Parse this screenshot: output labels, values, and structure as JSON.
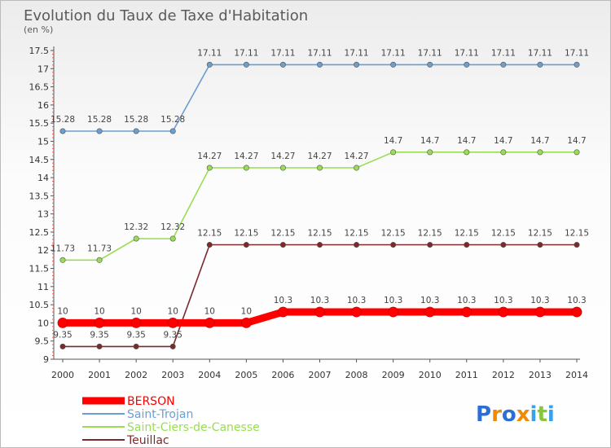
{
  "chart_data": {
    "type": "line",
    "title": "Evolution du Taux de Taxe d'Habitation",
    "subtitle": "(en %)",
    "x": [
      "2000",
      "2001",
      "2002",
      "2003",
      "2004",
      "2005",
      "2006",
      "2007",
      "2008",
      "2009",
      "2010",
      "2011",
      "2012",
      "2013",
      "2014"
    ],
    "ylim": [
      9,
      17.5
    ],
    "yticks": [
      "9",
      "9.5",
      "10",
      "10.5",
      "11",
      "11.5",
      "12",
      "12.5",
      "13",
      "13.5",
      "14",
      "14.5",
      "15",
      "15.5",
      "16",
      "16.5",
      "17",
      "17.5"
    ],
    "series": [
      {
        "name": "BERSON",
        "color": "#ff0000",
        "values": [
          10,
          10,
          10,
          10,
          10,
          10,
          10.3,
          10.3,
          10.3,
          10.3,
          10.3,
          10.3,
          10.3,
          10.3,
          10.3
        ],
        "labels": [
          "10",
          "10",
          "10",
          "10",
          "10",
          "10",
          "10.3",
          "10.3",
          "10.3",
          "10.3",
          "10.3",
          "10.3",
          "10.3",
          "10.3",
          "10.3"
        ]
      },
      {
        "name": "Saint-Trojan",
        "color": "#6b9fcf",
        "values": [
          15.28,
          15.28,
          15.28,
          15.28,
          17.11,
          17.11,
          17.11,
          17.11,
          17.11,
          17.11,
          17.11,
          17.11,
          17.11,
          17.11,
          17.11
        ],
        "labels": [
          "15.28",
          "15.28",
          "15.28",
          "15.28",
          "17.11",
          "17.11",
          "17.11",
          "17.11",
          "17.11",
          "17.11",
          "17.11",
          "17.11",
          "17.11",
          "17.11",
          "17.11"
        ]
      },
      {
        "name": "Saint-Ciers-de-Canesse",
        "color": "#99dd55",
        "values": [
          11.73,
          11.73,
          12.32,
          12.32,
          14.27,
          14.27,
          14.27,
          14.27,
          14.27,
          14.7,
          14.7,
          14.7,
          14.7,
          14.7,
          14.7
        ],
        "labels": [
          "11.73",
          "11.73",
          "12.32",
          "12.32",
          "14.27",
          "14.27",
          "14.27",
          "14.27",
          "14.27",
          "14.7",
          "14.7",
          "14.7",
          "14.7",
          "14.7",
          "14.7"
        ]
      },
      {
        "name": "Teuillac",
        "color": "#7a2a2a",
        "values": [
          9.35,
          9.35,
          9.35,
          9.35,
          12.15,
          12.15,
          12.15,
          12.15,
          12.15,
          12.15,
          12.15,
          12.15,
          12.15,
          12.15,
          12.15
        ],
        "labels": [
          "9.35",
          "9.35",
          "9.35",
          "9.35",
          "12.15",
          "12.15",
          "12.15",
          "12.15",
          "12.15",
          "12.15",
          "12.15",
          "12.15",
          "12.15",
          "12.15",
          "12.15"
        ]
      }
    ],
    "legend": [
      "BERSON",
      "Saint-Trojan",
      "Saint-Ciers-de-Canesse",
      "Teuillac"
    ],
    "legend_position": "bottom-left",
    "grid": false
  },
  "logo": {
    "text": "Proxiti",
    "letters": [
      "P",
      "r",
      "o",
      "x",
      "i",
      "t",
      "i"
    ],
    "colors": [
      "#2b6fd6",
      "#f08a00",
      "#2b6fd6",
      "#f08a00",
      "#3aa0e8",
      "#88c53a",
      "#3aa0e8"
    ]
  }
}
